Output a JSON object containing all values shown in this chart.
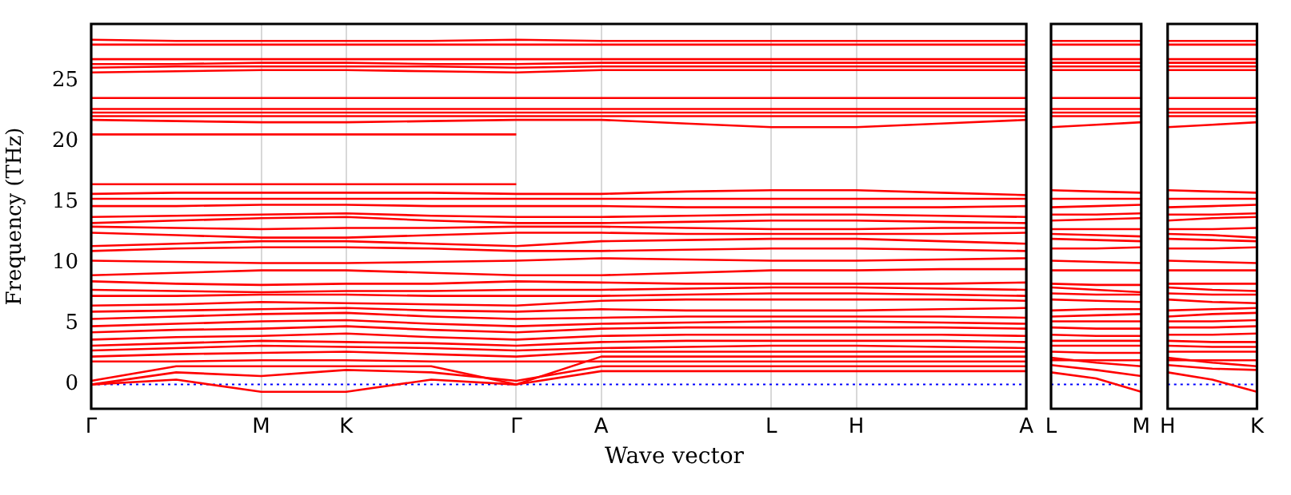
{
  "chart_data": [
    {
      "type": "line",
      "ylabel": "Frequency (THz)",
      "xlabel": "Wave vector",
      "grid": "x",
      "ylim": [
        -2,
        29.7
      ],
      "yticks": [
        0,
        5,
        10,
        15,
        20,
        25
      ],
      "categories": [
        "Γ",
        null,
        "M",
        "K",
        null,
        "Γ",
        "A",
        null,
        "L",
        "H",
        null,
        "A"
      ],
      "ref_lines": [
        {
          "axis": "y",
          "value": 0,
          "color": "#0000ff",
          "line_style": "dotted"
        }
      ],
      "series": [
        {
          "color": "#ff0000",
          "values": [
            0,
            0.4,
            -0.6,
            -0.6,
            0.4,
            0,
            1.1,
            1.1,
            1.1,
            1.1,
            1.1,
            1.1
          ]
        },
        {
          "color": "#ff0000",
          "values": [
            0,
            1.0,
            0.7,
            1.2,
            1.0,
            0.3,
            1.5,
            1.5,
            1.5,
            1.5,
            1.5,
            1.5
          ]
        },
        {
          "color": "#ff0000",
          "values": [
            0.3,
            1.5,
            1.5,
            1.5,
            1.5,
            0,
            2.3,
            2.3,
            2.3,
            2.3,
            2.3,
            2.3
          ]
        },
        {
          "color": "#ff0000",
          "values": [
            1.9,
            1.9,
            2.0,
            2.0,
            1.9,
            1.9,
            1.9,
            1.9,
            1.9,
            1.9,
            1.9,
            1.9
          ]
        },
        {
          "color": "#ff0000",
          "values": [
            2.3,
            2.5,
            2.6,
            2.7,
            2.5,
            2.3,
            2.7,
            2.7,
            2.7,
            2.7,
            2.7,
            2.7
          ]
        },
        {
          "color": "#ff0000",
          "values": [
            2.8,
            3.0,
            3.2,
            3.1,
            3.0,
            2.8,
            3.0,
            3.1,
            3.2,
            3.2,
            3.1,
            3.0
          ]
        },
        {
          "color": "#ff0000",
          "values": [
            3.2,
            3.4,
            3.6,
            3.5,
            3.4,
            3.2,
            3.5,
            3.6,
            3.6,
            3.6,
            3.6,
            3.5
          ]
        },
        {
          "color": "#ff0000",
          "values": [
            3.7,
            3.9,
            4.0,
            4.2,
            3.9,
            3.7,
            4.0,
            4.1,
            4.1,
            4.1,
            4.1,
            4.0
          ]
        },
        {
          "color": "#ff0000",
          "values": [
            4.3,
            4.5,
            4.6,
            4.8,
            4.5,
            4.3,
            4.6,
            4.7,
            4.7,
            4.7,
            4.7,
            4.6
          ]
        },
        {
          "color": "#ff0000",
          "values": [
            4.8,
            5.0,
            5.2,
            5.3,
            5.0,
            4.8,
            5.0,
            5.1,
            5.2,
            5.2,
            5.1,
            5.0
          ]
        },
        {
          "color": "#ff0000",
          "values": [
            5.4,
            5.6,
            5.8,
            5.9,
            5.6,
            5.4,
            5.5,
            5.6,
            5.6,
            5.6,
            5.6,
            5.5
          ]
        },
        {
          "color": "#ff0000",
          "values": [
            6.0,
            6.1,
            6.2,
            6.3,
            6.1,
            6.0,
            6.2,
            6.1,
            6.1,
            6.1,
            6.2,
            6.3
          ]
        },
        {
          "color": "#ff0000",
          "values": [
            6.5,
            6.6,
            6.8,
            6.7,
            6.6,
            6.5,
            6.9,
            7.0,
            7.0,
            7.0,
            7.0,
            6.9
          ]
        },
        {
          "color": "#ff0000",
          "values": [
            7.3,
            7.3,
            7.4,
            7.4,
            7.3,
            7.3,
            7.3,
            7.4,
            7.5,
            7.5,
            7.4,
            7.3
          ]
        },
        {
          "color": "#ff0000",
          "values": [
            7.8,
            7.7,
            7.6,
            7.7,
            7.7,
            7.8,
            7.8,
            7.9,
            8.0,
            8.0,
            7.9,
            7.8
          ]
        },
        {
          "color": "#ff0000",
          "values": [
            8.5,
            8.3,
            8.2,
            8.3,
            8.3,
            8.5,
            8.4,
            8.3,
            8.3,
            8.3,
            8.3,
            8.4
          ]
        },
        {
          "color": "#ff0000",
          "values": [
            9.0,
            9.2,
            9.4,
            9.4,
            9.2,
            9.0,
            9.0,
            9.2,
            9.4,
            9.4,
            9.5,
            9.5
          ]
        },
        {
          "color": "#ff0000",
          "values": [
            10.2,
            10.1,
            10.0,
            10.0,
            10.1,
            10.2,
            10.4,
            10.3,
            10.2,
            10.2,
            10.3,
            10.4
          ]
        },
        {
          "color": "#ff0000",
          "values": [
            11.0,
            11.2,
            11.3,
            11.3,
            11.2,
            11.0,
            11.0,
            11.1,
            11.2,
            11.2,
            11.1,
            11.0
          ]
        },
        {
          "color": "#ff0000",
          "values": [
            11.4,
            11.6,
            11.8,
            11.8,
            11.6,
            11.4,
            11.8,
            11.9,
            12.0,
            12.0,
            11.8,
            11.6
          ]
        },
        {
          "color": "#ff0000",
          "values": [
            12.5,
            12.3,
            12.1,
            12.1,
            12.3,
            12.5,
            12.5,
            12.4,
            12.4,
            12.4,
            12.4,
            12.5
          ]
        },
        {
          "color": "#ff0000",
          "values": [
            13.0,
            12.9,
            12.8,
            12.9,
            12.9,
            13.0,
            13.0,
            12.9,
            12.8,
            12.8,
            12.9,
            12.9
          ]
        },
        {
          "color": "#ff0000",
          "values": [
            13.3,
            13.5,
            13.7,
            13.8,
            13.5,
            13.3,
            13.3,
            13.4,
            13.5,
            13.5,
            13.4,
            13.3
          ]
        },
        {
          "color": "#ff0000",
          "values": [
            13.8,
            13.9,
            14.0,
            14.1,
            13.9,
            13.8,
            13.8,
            13.9,
            14.0,
            14.0,
            13.9,
            13.8
          ]
        },
        {
          "color": "#ff0000",
          "values": [
            14.7,
            14.7,
            14.8,
            14.8,
            14.7,
            14.7,
            14.7,
            14.6,
            14.6,
            14.6,
            14.6,
            14.7
          ]
        },
        {
          "color": "#ff0000",
          "values": [
            15.3,
            15.3,
            15.3,
            15.3,
            15.3,
            15.3,
            15.3,
            15.3,
            15.3,
            15.3,
            15.3,
            15.3
          ]
        },
        {
          "color": "#ff0000",
          "values": [
            15.7,
            15.8,
            15.8,
            15.8,
            15.8,
            15.7,
            15.7,
            15.9,
            16.0,
            16.0,
            15.8,
            15.6
          ]
        },
        {
          "color": "#ff0000",
          "values": [
            16.5,
            16.5,
            16.5,
            16.5,
            16.5,
            16.5,
            null,
            null,
            null,
            null,
            null,
            null
          ]
        },
        {
          "color": "#ff0000",
          "values": [
            20.6,
            20.6,
            20.6,
            20.6,
            20.6,
            20.6,
            null,
            null,
            null,
            null,
            null,
            null
          ]
        },
        {
          "color": "#ff0000",
          "values": [
            21.8,
            21.7,
            21.6,
            21.6,
            21.7,
            21.8,
            21.8,
            21.5,
            21.2,
            21.2,
            21.5,
            21.8
          ]
        },
        {
          "color": "#ff0000",
          "values": [
            22.1,
            22.1,
            22.1,
            22.1,
            22.1,
            22.1,
            22.1,
            22.1,
            22.1,
            22.1,
            22.1,
            22.1
          ]
        },
        {
          "color": "#ff0000",
          "values": [
            22.4,
            22.4,
            22.4,
            22.4,
            22.4,
            22.4,
            22.4,
            22.4,
            22.4,
            22.4,
            22.4,
            22.4
          ]
        },
        {
          "color": "#ff0000",
          "values": [
            22.7,
            22.7,
            22.7,
            22.7,
            22.7,
            22.7,
            22.7,
            22.7,
            22.7,
            22.7,
            22.7,
            22.7
          ]
        },
        {
          "color": "#ff0000",
          "values": [
            23.6,
            23.6,
            23.6,
            23.6,
            23.6,
            23.6,
            23.6,
            23.6,
            23.6,
            23.6,
            23.6,
            23.6
          ]
        },
        {
          "color": "#ff0000",
          "values": [
            25.7,
            25.8,
            25.9,
            25.9,
            25.8,
            25.7,
            25.9,
            25.9,
            25.9,
            25.9,
            25.9,
            25.9
          ]
        },
        {
          "color": "#ff0000",
          "values": [
            26.1,
            26.2,
            26.2,
            26.2,
            26.2,
            26.1,
            26.2,
            26.2,
            26.2,
            26.2,
            26.2,
            26.2
          ]
        },
        {
          "color": "#ff0000",
          "values": [
            26.4,
            26.4,
            26.5,
            26.5,
            26.4,
            26.4,
            26.5,
            26.5,
            26.5,
            26.5,
            26.5,
            26.5
          ]
        },
        {
          "color": "#ff0000",
          "values": [
            26.8,
            26.8,
            26.8,
            26.8,
            26.8,
            26.8,
            26.8,
            26.8,
            26.8,
            26.8,
            26.8,
            26.8
          ]
        },
        {
          "color": "#ff0000",
          "values": [
            28.0,
            28.0,
            28.0,
            28.0,
            28.0,
            28.0,
            28.0,
            28.0,
            28.0,
            28.0,
            28.0,
            28.0
          ]
        },
        {
          "color": "#ff0000",
          "values": [
            28.4,
            28.3,
            28.3,
            28.3,
            28.3,
            28.4,
            28.3,
            28.3,
            28.3,
            28.3,
            28.3,
            28.3
          ]
        }
      ]
    },
    {
      "type": "line",
      "tick_labels": "x",
      "ylim": [
        -2,
        29.7
      ],
      "categories": [
        "L",
        null,
        "M"
      ],
      "ref_lines": [
        {
          "axis": "y",
          "value": 0,
          "color": "#0000ff",
          "line_style": "dotted"
        }
      ],
      "series": [
        {
          "color": "#ff0000",
          "values": [
            1.0,
            0.5,
            -0.6
          ]
        },
        {
          "color": "#ff0000",
          "values": [
            1.6,
            1.2,
            0.7
          ]
        },
        {
          "color": "#ff0000",
          "values": [
            2.2,
            1.8,
            1.5
          ]
        },
        {
          "color": "#ff0000",
          "values": [
            2.0,
            2.0,
            2.0
          ]
        },
        {
          "color": "#ff0000",
          "values": [
            2.7,
            2.6,
            2.6
          ]
        },
        {
          "color": "#ff0000",
          "values": [
            3.2,
            3.2,
            3.2
          ]
        },
        {
          "color": "#ff0000",
          "values": [
            3.6,
            3.6,
            3.6
          ]
        },
        {
          "color": "#ff0000",
          "values": [
            4.1,
            4.0,
            4.0
          ]
        },
        {
          "color": "#ff0000",
          "values": [
            4.7,
            4.6,
            4.6
          ]
        },
        {
          "color": "#ff0000",
          "values": [
            5.2,
            5.2,
            5.2
          ]
        },
        {
          "color": "#ff0000",
          "values": [
            5.6,
            5.7,
            5.8
          ]
        },
        {
          "color": "#ff0000",
          "values": [
            6.1,
            6.2,
            6.2
          ]
        },
        {
          "color": "#ff0000",
          "values": [
            7.0,
            6.9,
            6.8
          ]
        },
        {
          "color": "#ff0000",
          "values": [
            7.5,
            7.4,
            7.4
          ]
        },
        {
          "color": "#ff0000",
          "values": [
            8.0,
            7.8,
            7.6
          ]
        },
        {
          "color": "#ff0000",
          "values": [
            8.3,
            8.2,
            8.2
          ]
        },
        {
          "color": "#ff0000",
          "values": [
            9.4,
            9.4,
            9.4
          ]
        },
        {
          "color": "#ff0000",
          "values": [
            10.2,
            10.1,
            10.0
          ]
        },
        {
          "color": "#ff0000",
          "values": [
            11.2,
            11.2,
            11.3
          ]
        },
        {
          "color": "#ff0000",
          "values": [
            12.0,
            11.9,
            11.8
          ]
        },
        {
          "color": "#ff0000",
          "values": [
            12.4,
            12.3,
            12.2
          ]
        },
        {
          "color": "#ff0000",
          "values": [
            12.8,
            12.8,
            12.8
          ]
        },
        {
          "color": "#ff0000",
          "values": [
            13.5,
            13.6,
            13.7
          ]
        },
        {
          "color": "#ff0000",
          "values": [
            14.0,
            14.0,
            14.1
          ]
        },
        {
          "color": "#ff0000",
          "values": [
            14.6,
            14.7,
            14.8
          ]
        },
        {
          "color": "#ff0000",
          "values": [
            15.3,
            15.3,
            15.3
          ]
        },
        {
          "color": "#ff0000",
          "values": [
            16.0,
            15.9,
            15.8
          ]
        },
        {
          "color": "#ff0000",
          "values": [
            21.2,
            21.4,
            21.6
          ]
        },
        {
          "color": "#ff0000",
          "values": [
            22.1,
            22.1,
            22.1
          ]
        },
        {
          "color": "#ff0000",
          "values": [
            22.4,
            22.4,
            22.4
          ]
        },
        {
          "color": "#ff0000",
          "values": [
            22.7,
            22.7,
            22.7
          ]
        },
        {
          "color": "#ff0000",
          "values": [
            23.6,
            23.6,
            23.6
          ]
        },
        {
          "color": "#ff0000",
          "values": [
            25.9,
            25.9,
            25.9
          ]
        },
        {
          "color": "#ff0000",
          "values": [
            26.2,
            26.2,
            26.2
          ]
        },
        {
          "color": "#ff0000",
          "values": [
            26.5,
            26.5,
            26.5
          ]
        },
        {
          "color": "#ff0000",
          "values": [
            26.8,
            26.8,
            26.8
          ]
        },
        {
          "color": "#ff0000",
          "values": [
            28.0,
            28.0,
            28.0
          ]
        },
        {
          "color": "#ff0000",
          "values": [
            28.3,
            28.3,
            28.3
          ]
        }
      ]
    },
    {
      "type": "line",
      "tick_labels": "x",
      "ylim": [
        -2,
        29.7
      ],
      "categories": [
        "H",
        null,
        "K"
      ],
      "ref_lines": [
        {
          "axis": "y",
          "value": 0,
          "color": "#0000ff",
          "line_style": "dotted"
        }
      ],
      "series": [
        {
          "color": "#ff0000",
          "values": [
            1.0,
            0.4,
            -0.6
          ]
        },
        {
          "color": "#ff0000",
          "values": [
            1.6,
            1.3,
            1.2
          ]
        },
        {
          "color": "#ff0000",
          "values": [
            2.2,
            1.8,
            1.5
          ]
        },
        {
          "color": "#ff0000",
          "values": [
            2.0,
            2.0,
            2.0
          ]
        },
        {
          "color": "#ff0000",
          "values": [
            2.7,
            2.7,
            2.7
          ]
        },
        {
          "color": "#ff0000",
          "values": [
            3.2,
            3.1,
            3.1
          ]
        },
        {
          "color": "#ff0000",
          "values": [
            3.6,
            3.5,
            3.5
          ]
        },
        {
          "color": "#ff0000",
          "values": [
            4.1,
            4.1,
            4.2
          ]
        },
        {
          "color": "#ff0000",
          "values": [
            4.7,
            4.7,
            4.8
          ]
        },
        {
          "color": "#ff0000",
          "values": [
            5.2,
            5.2,
            5.3
          ]
        },
        {
          "color": "#ff0000",
          "values": [
            5.6,
            5.8,
            5.9
          ]
        },
        {
          "color": "#ff0000",
          "values": [
            6.1,
            6.2,
            6.3
          ]
        },
        {
          "color": "#ff0000",
          "values": [
            7.0,
            6.8,
            6.7
          ]
        },
        {
          "color": "#ff0000",
          "values": [
            7.5,
            7.4,
            7.4
          ]
        },
        {
          "color": "#ff0000",
          "values": [
            8.0,
            7.8,
            7.7
          ]
        },
        {
          "color": "#ff0000",
          "values": [
            8.3,
            8.3,
            8.3
          ]
        },
        {
          "color": "#ff0000",
          "values": [
            9.4,
            9.4,
            9.4
          ]
        },
        {
          "color": "#ff0000",
          "values": [
            10.2,
            10.1,
            10.0
          ]
        },
        {
          "color": "#ff0000",
          "values": [
            11.2,
            11.2,
            11.3
          ]
        },
        {
          "color": "#ff0000",
          "values": [
            12.0,
            11.9,
            11.8
          ]
        },
        {
          "color": "#ff0000",
          "values": [
            12.4,
            12.3,
            12.1
          ]
        },
        {
          "color": "#ff0000",
          "values": [
            12.8,
            12.8,
            12.9
          ]
        },
        {
          "color": "#ff0000",
          "values": [
            13.5,
            13.7,
            13.8
          ]
        },
        {
          "color": "#ff0000",
          "values": [
            14.0,
            14.0,
            14.1
          ]
        },
        {
          "color": "#ff0000",
          "values": [
            14.6,
            14.7,
            14.8
          ]
        },
        {
          "color": "#ff0000",
          "values": [
            15.3,
            15.3,
            15.3
          ]
        },
        {
          "color": "#ff0000",
          "values": [
            16.0,
            15.9,
            15.8
          ]
        },
        {
          "color": "#ff0000",
          "values": [
            21.2,
            21.4,
            21.6
          ]
        },
        {
          "color": "#ff0000",
          "values": [
            22.1,
            22.1,
            22.1
          ]
        },
        {
          "color": "#ff0000",
          "values": [
            22.4,
            22.4,
            22.4
          ]
        },
        {
          "color": "#ff0000",
          "values": [
            22.7,
            22.7,
            22.7
          ]
        },
        {
          "color": "#ff0000",
          "values": [
            23.6,
            23.6,
            23.6
          ]
        },
        {
          "color": "#ff0000",
          "values": [
            25.9,
            25.9,
            25.9
          ]
        },
        {
          "color": "#ff0000",
          "values": [
            26.2,
            26.2,
            26.2
          ]
        },
        {
          "color": "#ff0000",
          "values": [
            26.5,
            26.5,
            26.5
          ]
        },
        {
          "color": "#ff0000",
          "values": [
            26.8,
            26.8,
            26.8
          ]
        },
        {
          "color": "#ff0000",
          "values": [
            28.0,
            28.0,
            28.0
          ]
        },
        {
          "color": "#ff0000",
          "values": [
            28.3,
            28.3,
            28.3
          ]
        }
      ]
    }
  ]
}
